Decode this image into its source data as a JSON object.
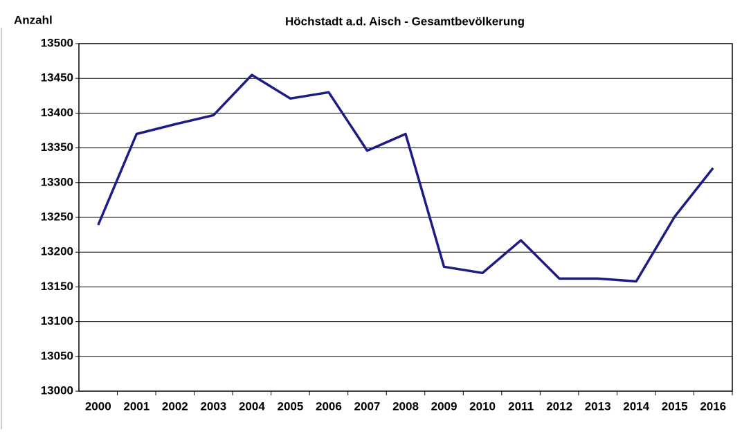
{
  "chart_data": {
    "type": "line",
    "title": "Höchstadt a.d. Aisch -  Gesamtbevölkerung",
    "y_label": "Anzahl",
    "categories": [
      "2000",
      "2001",
      "2002",
      "2003",
      "2004",
      "2005",
      "2006",
      "2007",
      "2008",
      "2009",
      "2010",
      "2011",
      "2012",
      "2013",
      "2014",
      "2015",
      "2016"
    ],
    "values": [
      13239,
      13370,
      13384,
      13397,
      13455,
      13421,
      13430,
      13346,
      13370,
      13179,
      13170,
      13217,
      13162,
      13162,
      13158,
      13251,
      13321
    ],
    "color": "#1c1c84",
    "ylim": [
      13000,
      13500
    ],
    "yticks": [
      13000,
      13050,
      13100,
      13150,
      13200,
      13250,
      13300,
      13350,
      13400,
      13450,
      13500
    ],
    "grid": true
  }
}
